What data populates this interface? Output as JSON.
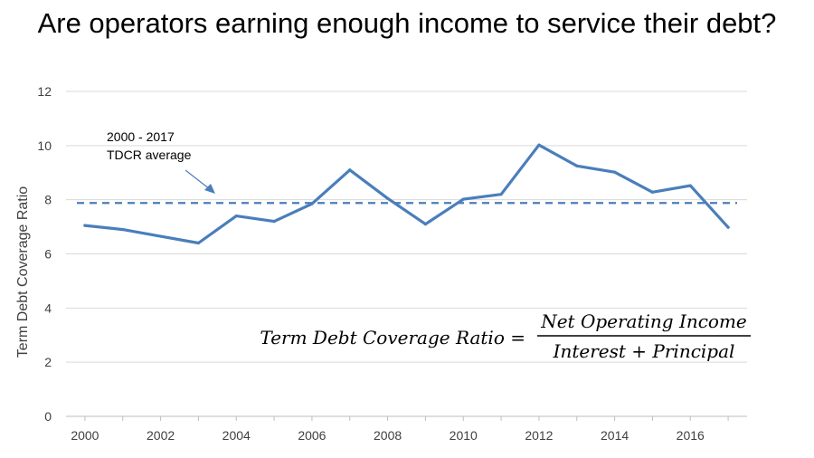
{
  "title": "Are operators earning enough income to service their debt?",
  "chart_data": {
    "type": "line",
    "title": "Are operators earning enough income to service their debt?",
    "xlabel": "",
    "ylabel": "Term Debt Coverage Ratio",
    "x": [
      2000,
      2001,
      2002,
      2003,
      2004,
      2005,
      2006,
      2007,
      2008,
      2009,
      2010,
      2011,
      2012,
      2013,
      2014,
      2015,
      2016,
      2017
    ],
    "series": [
      {
        "name": "",
        "values": [
          7.05,
          6.9,
          6.65,
          6.4,
          7.4,
          7.2,
          7.85,
          9.1,
          8.05,
          7.1,
          8.02,
          8.2,
          10.02,
          9.25,
          9.02,
          8.28,
          8.52,
          6.98
        ],
        "color": "#4a7ebb"
      }
    ],
    "reference_line": {
      "value": 7.88,
      "style": "dashed",
      "color": "#4a7ebb"
    },
    "xlim": [
      1999.5,
      2017.5
    ],
    "ylim": [
      0,
      12
    ],
    "yticks": [
      0,
      2,
      4,
      6,
      8,
      10,
      12
    ],
    "xticks": [
      2000,
      2002,
      2004,
      2006,
      2008,
      2010,
      2012,
      2014,
      2016
    ],
    "grid": "horizontal",
    "legend": "none",
    "annotation": {
      "line1": "2000 - 2017",
      "line2": "TDCR average"
    },
    "formula": {
      "lhs": "Term Debt Coverage Ratio =",
      "numerator": "Net Operating Income",
      "denominator": "Interest + Principal"
    }
  }
}
